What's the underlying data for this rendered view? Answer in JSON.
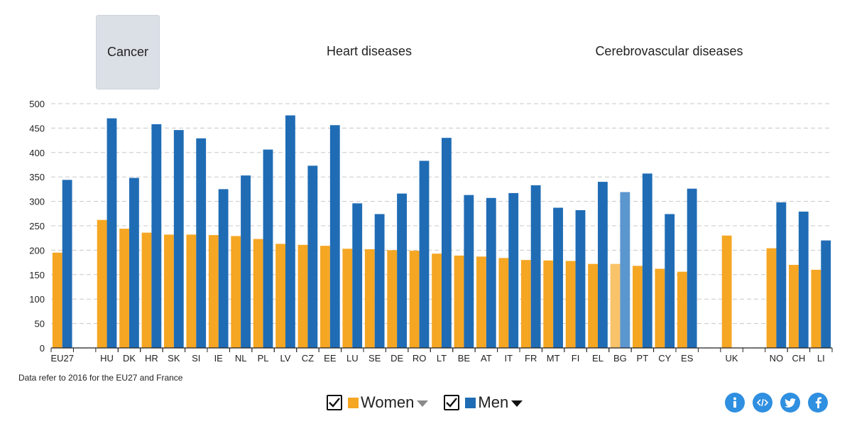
{
  "tabs": [
    {
      "label": "Cancer",
      "active": true
    },
    {
      "label": "Heart diseases",
      "active": false
    },
    {
      "label": "Cerebrovascular diseases",
      "active": false
    }
  ],
  "footnote": "Data refer to 2016 for the EU27 and France",
  "legend": {
    "women_label": "Women",
    "men_label": "Men"
  },
  "colors": {
    "women": "#f5a623",
    "men": "#1f6cb5",
    "women_highlight": "#f9c36a",
    "men_highlight": "#5b96cf",
    "grid": "#c8c8c8",
    "share_buttons": "#2f8fe0"
  },
  "share_icons": [
    "info-icon",
    "embed-icon",
    "twitter-icon",
    "facebook-icon"
  ],
  "chart_data": {
    "type": "bar",
    "categories": [
      "EU27",
      "HU",
      "DK",
      "HR",
      "SK",
      "SI",
      "IE",
      "NL",
      "PL",
      "LV",
      "CZ",
      "EE",
      "LU",
      "SE",
      "DE",
      "RO",
      "LT",
      "BE",
      "AT",
      "IT",
      "FR",
      "MT",
      "FI",
      "EL",
      "BG",
      "PT",
      "CY",
      "ES",
      "UK",
      "NO",
      "CH",
      "LI"
    ],
    "series": [
      {
        "name": "Women",
        "values": [
          195,
          262,
          244,
          236,
          232,
          232,
          231,
          229,
          223,
          213,
          211,
          209,
          203,
          202,
          200,
          199,
          193,
          189,
          187,
          184,
          180,
          179,
          178,
          172,
          172,
          168,
          162,
          156,
          230,
          204,
          170,
          160
        ]
      },
      {
        "name": "Men",
        "values": [
          344,
          470,
          348,
          458,
          446,
          429,
          325,
          353,
          406,
          476,
          373,
          456,
          296,
          274,
          316,
          383,
          430,
          313,
          307,
          317,
          333,
          287,
          282,
          340,
          319,
          357,
          274,
          326,
          null,
          298,
          279,
          220
        ]
      }
    ],
    "highlight_category": "BG",
    "group_breaks_after": [
      "EU27",
      "ES",
      "UK"
    ],
    "ylim": [
      0,
      500
    ],
    "yticks": [
      0,
      50,
      100,
      150,
      200,
      250,
      300,
      350,
      400,
      450,
      500
    ],
    "grid": true,
    "legend_position": "bottom-center"
  }
}
